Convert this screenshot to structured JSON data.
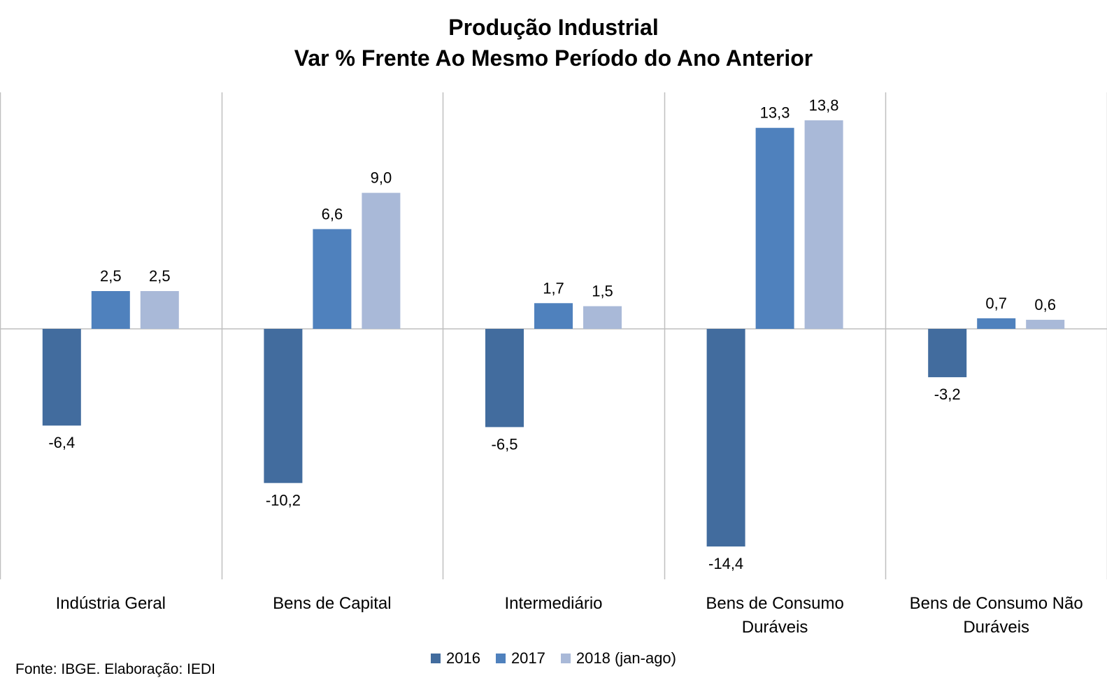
{
  "chart_data": {
    "type": "bar",
    "title": "Produção Industrial",
    "subtitle": "Var % Frente Ao Mesmo Período do Ano Anterior",
    "categories": [
      "Indústria Geral",
      "Bens de Capital",
      "Intermediário",
      "Bens de Consumo Duráveis",
      "Bens de Consumo Não Duráveis"
    ],
    "category_lines": [
      [
        "Indústria Geral"
      ],
      [
        "Bens de Capital"
      ],
      [
        "Intermediário"
      ],
      [
        "Bens de Consumo",
        "Duráveis"
      ],
      [
        "Bens de Consumo Não",
        "Duráveis"
      ]
    ],
    "series": [
      {
        "name": "2016",
        "color": "#426C9E",
        "values": [
          -6.4,
          -10.2,
          -6.5,
          -14.4,
          -3.2
        ],
        "labels": [
          "-6,4",
          "-10,2",
          "-6,5",
          "-14,4",
          "-3,2"
        ]
      },
      {
        "name": "2017",
        "color": "#4F81BD",
        "values": [
          2.5,
          6.6,
          1.7,
          13.3,
          0.7
        ],
        "labels": [
          "2,5",
          "6,6",
          "1,7",
          "13,3",
          "0,7"
        ]
      },
      {
        "name": "2018 (jan-ago)",
        "color": "#A9B9D8",
        "values": [
          2.5,
          9.0,
          1.5,
          13.8,
          0.6
        ],
        "labels": [
          "2,5",
          "9,0",
          "1,5",
          "13,8",
          "0,6"
        ]
      }
    ],
    "ylim": [
      -16.6,
      15.6
    ],
    "legend_position": "bottom",
    "grid": false
  },
  "source_note": "Fonte: IBGE. Elaboração: IEDI"
}
